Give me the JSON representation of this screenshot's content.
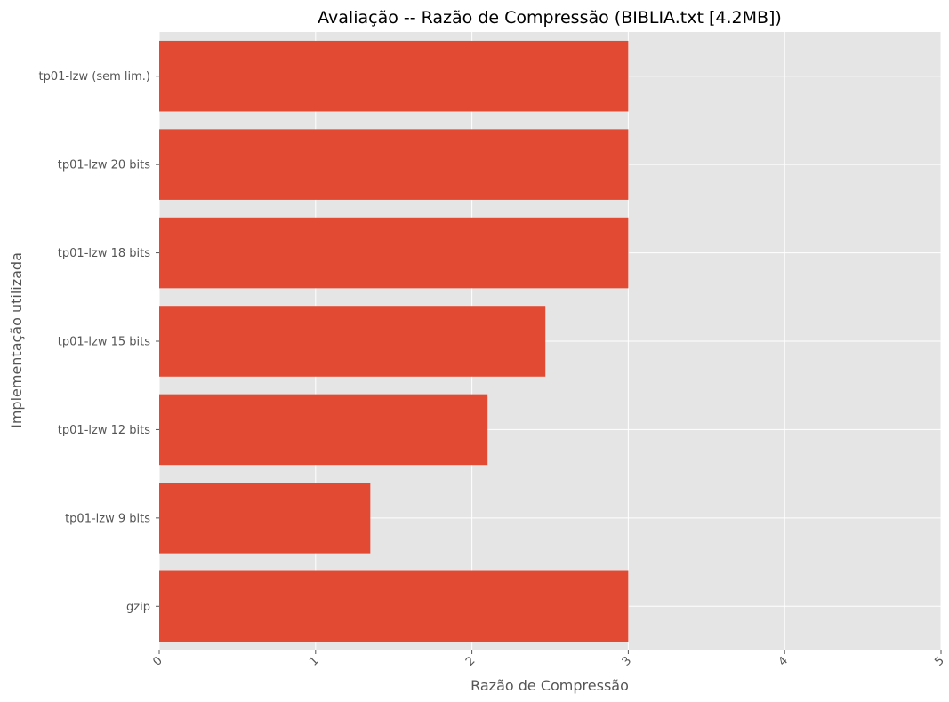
{
  "chart_data": {
    "type": "bar",
    "orientation": "horizontal",
    "title": "Avaliação -- Razão de Compressão (BIBLIA.txt [4.2MB])",
    "xlabel": "Razão de Compressão",
    "ylabel": "Implementação utilizada",
    "categories": [
      "tp01-lzw (sem lim.)",
      "tp01-lzw 20 bits",
      "tp01-lzw 18 bits",
      "tp01-lzw 15 bits",
      "tp01-lzw 12 bits",
      "tp01-lzw 9 bits",
      "gzip"
    ],
    "values": [
      3.0,
      3.0,
      3.0,
      2.47,
      2.1,
      1.35,
      3.0
    ],
    "xlim": [
      0,
      5
    ],
    "xticks": [
      "0",
      "1",
      "2",
      "3",
      "4",
      "5"
    ],
    "xtick_rotation": -45,
    "grid": true,
    "style": "ggplot",
    "colors": {
      "bar": "#E24A33",
      "plot_background": "#E5E5E5",
      "grid": "#FFFFFF",
      "text": "#555555",
      "title": "#000000"
    }
  }
}
